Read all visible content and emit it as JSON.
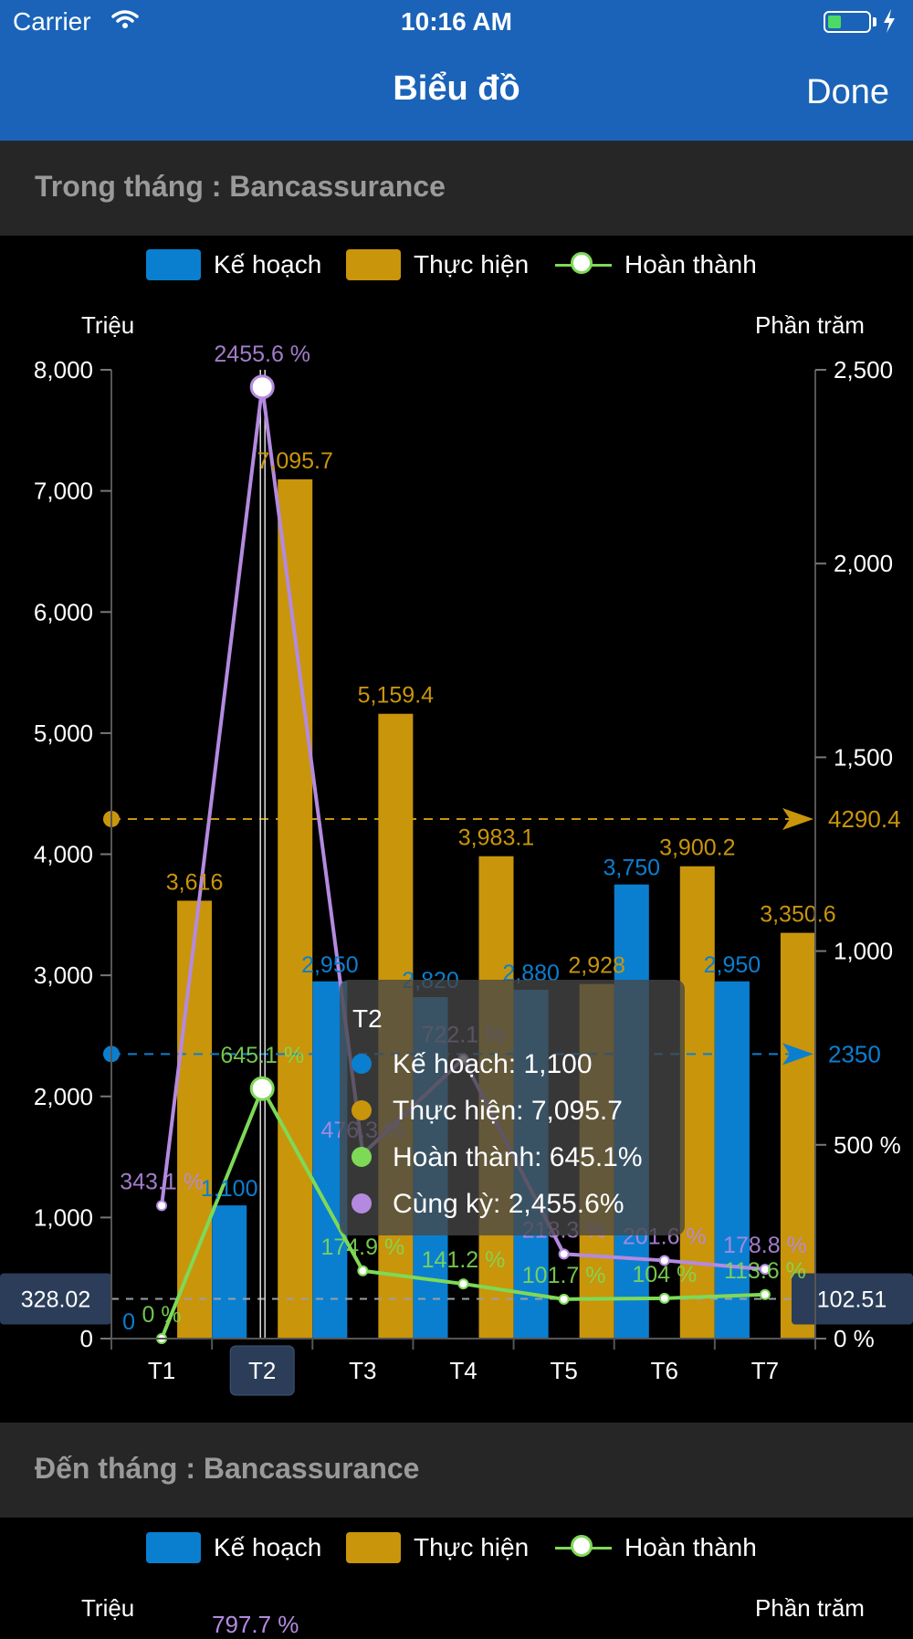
{
  "status_bar": {
    "carrier": "Carrier",
    "time": "10:16 AM"
  },
  "navbar": {
    "title": "Biểu đồ",
    "done_label": "Done"
  },
  "sections": [
    {
      "title": "Trong tháng : Bancassurance"
    },
    {
      "title": "Đến tháng : Bancassurance"
    }
  ],
  "legend": {
    "plan": "Kế hoạch",
    "actual": "Thực hiện",
    "completion": "Hoàn thành"
  },
  "axis_titles": {
    "left": "Triệu",
    "right": "Phần trăm"
  },
  "colors": {
    "plan": "#0a7fd0",
    "actual": "#c9950b",
    "completion": "#7ed957",
    "same_period": "#b48ae0",
    "navbar": "#1a63b8"
  },
  "chart_data": {
    "type": "bar",
    "categories": [
      "T1",
      "T2",
      "T3",
      "T4",
      "T5",
      "T6",
      "T7"
    ],
    "selected_category": "T2",
    "ylim": [
      0,
      8000
    ],
    "y2lim": [
      0,
      2500
    ],
    "y_ticks": [
      "0",
      "1,000",
      "2,000",
      "3,000",
      "4,000",
      "5,000",
      "6,000",
      "7,000",
      "8,000"
    ],
    "y2_ticks": [
      "0 %",
      "500 %",
      "1,000",
      "1,500",
      "2,000",
      "2,500"
    ],
    "series": [
      {
        "name": "Kế hoạch",
        "axis": "left",
        "values": [
          0,
          1100,
          2950,
          2820,
          2880,
          3750,
          2950
        ],
        "labels": [
          "0",
          "1,100",
          "2,950",
          "2,820",
          "2,880",
          "3,750",
          "2,950"
        ]
      },
      {
        "name": "Thực hiện",
        "axis": "left",
        "values": [
          3616,
          7095.7,
          5159.4,
          3983.1,
          2928,
          3900.2,
          3350.6
        ],
        "labels": [
          "3,616",
          "7,095.7",
          "5,159.4",
          "3,983.1",
          "2,928",
          "3,900.2",
          "3,350.6"
        ]
      },
      {
        "name": "Hoàn thành",
        "axis": "right",
        "values": [
          0,
          645.1,
          174.9,
          141.2,
          101.7,
          104,
          113.6
        ],
        "labels": [
          "0 %",
          "645.1 %",
          "174.9 %",
          "141.2 %",
          "101.7 %",
          "104 %",
          "113.6 %"
        ]
      },
      {
        "name": "Cùng kỳ",
        "axis": "right",
        "values": [
          343.1,
          2455.6,
          476.3,
          722.1,
          218.3,
          201.6,
          178.8
        ],
        "labels": [
          "343.1 %",
          "2455.6 %",
          "476.3 %",
          "722.1 %",
          "218.3 %",
          "201.6 %",
          "178.8 %"
        ]
      }
    ],
    "reference_lines": [
      {
        "axis": "right",
        "value": 4290.4,
        "label": "4290.4",
        "color": "#c9950b",
        "y_equiv": 4290.4
      },
      {
        "axis": "right",
        "value": 2350,
        "label": "2350",
        "color": "#0a7fd0",
        "y_equiv": 2350
      }
    ],
    "crosshair": {
      "left_label": "328.02",
      "right_label": "102.51",
      "value": 328.02
    },
    "tooltip": {
      "title": "T2",
      "rows": [
        "Kế hoạch: 1,100",
        "Thực hiện: 7,095.7",
        "Hoàn thành: 645.1%",
        "Cùng kỳ: 2,455.6%"
      ]
    }
  },
  "chart2_preview": {
    "partial_label": "797.7 %"
  }
}
